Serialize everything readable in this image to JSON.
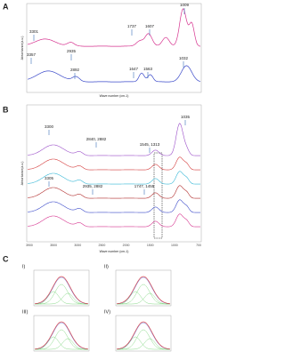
{
  "panels": [
    {
      "label": "A",
      "y_axis_label": "Absorbance(a.u.)",
      "x_axis_label": "Wave number (cm-1)",
      "annotations": [
        "3301",
        "2935",
        "3357",
        "2892",
        "1737",
        "1607",
        "1647",
        "1563",
        "1009",
        "1032"
      ]
    },
    {
      "label": "B",
      "y_axis_label": "Absorbance(a.u.)",
      "x_axis_label": "Wave number (cm-1)",
      "annotations": [
        "3300",
        "2840, 2882",
        "1545, 1313",
        "1035",
        "3305",
        "2935, 2882",
        "1747, 1455"
      ],
      "x_ticks": [
        "3900",
        "3500",
        "3000",
        "2500",
        "2000",
        "1500",
        "1000",
        "700"
      ]
    },
    {
      "label": "C",
      "subpanels": [
        "I)",
        "II)",
        "III)",
        "IV)"
      ]
    }
  ]
}
